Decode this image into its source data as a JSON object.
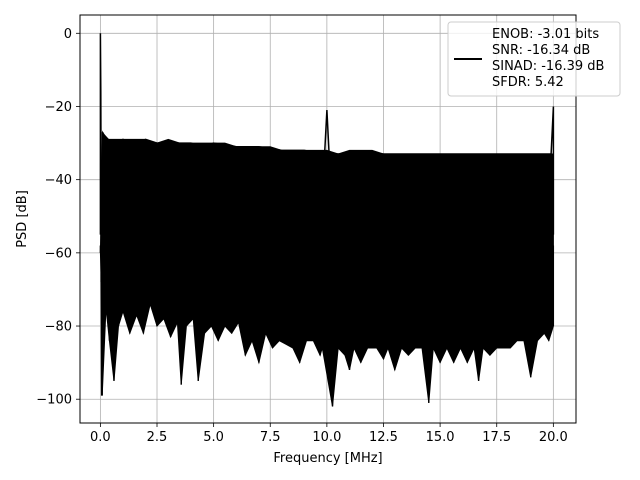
{
  "chart_data": {
    "type": "line",
    "title": "",
    "xlabel": "Frequency [MHz]",
    "ylabel": "PSD [dB]",
    "xlim": [
      -0.9,
      21.0
    ],
    "ylim": [
      -106.5,
      5.0
    ],
    "xticks": [
      0.0,
      2.5,
      5.0,
      7.5,
      10.0,
      12.5,
      15.0,
      17.5,
      20.0
    ],
    "xtick_labels": [
      "0.0",
      "2.5",
      "5.0",
      "7.5",
      "10.0",
      "12.5",
      "15.0",
      "17.5",
      "20.0"
    ],
    "yticks": [
      0,
      -20,
      -40,
      -60,
      -80,
      -100
    ],
    "ytick_labels": [
      "0",
      "−20",
      "−40",
      "−60",
      "−80",
      "−100"
    ],
    "grid": true,
    "legend_position": "top-right",
    "legend_entries": [
      "ENOB: -3.01 bits",
      "SNR: -16.34 dB",
      "SINAD: -16.39 dB",
      "SFDR: 5.42"
    ],
    "series": [
      {
        "color": "#000000",
        "x": [
          0.0,
          0.0,
          0.02,
          0.04,
          0.06,
          0.08,
          0.1,
          0.15,
          0.2,
          0.5,
          1.0,
          1.5,
          2.0,
          2.5,
          3.0,
          3.5,
          4.0,
          4.5,
          5.0,
          6.0,
          7.0,
          8.0,
          9.0,
          9.9,
          10.0,
          10.1,
          11.0,
          12.0,
          13.0,
          14.0,
          15.0,
          16.0,
          17.0,
          18.0,
          19.0,
          19.9,
          20.0,
          20.0
        ],
        "y": [
          -55,
          0,
          -16,
          -60,
          -99,
          -70,
          -27,
          -29,
          -28,
          -30,
          -29,
          -30,
          -29,
          -30,
          -30,
          -30,
          -30,
          -31,
          -30,
          -31,
          -31,
          -32,
          -32,
          -33,
          -21,
          -33,
          -33,
          -33,
          -33,
          -33,
          -33,
          -33,
          -33,
          -33,
          -33,
          -33,
          -20,
          -55
        ],
        "envelope_low": [
          [
            0.0,
            -60
          ],
          [
            0.04,
            -68
          ],
          [
            0.08,
            -99
          ],
          [
            0.25,
            -75
          ],
          [
            0.4,
            -84
          ],
          [
            0.6,
            -95
          ],
          [
            0.8,
            -80
          ],
          [
            1.0,
            -76
          ],
          [
            1.3,
            -82
          ],
          [
            1.6,
            -77
          ],
          [
            1.9,
            -82
          ],
          [
            2.2,
            -74
          ],
          [
            2.5,
            -80
          ],
          [
            2.8,
            -78
          ],
          [
            3.1,
            -83
          ],
          [
            3.4,
            -79
          ],
          [
            3.57,
            -96
          ],
          [
            3.8,
            -80
          ],
          [
            4.1,
            -78
          ],
          [
            4.32,
            -95
          ],
          [
            4.6,
            -82
          ],
          [
            4.9,
            -80
          ],
          [
            5.2,
            -84
          ],
          [
            5.5,
            -80
          ],
          [
            5.8,
            -82
          ],
          [
            6.1,
            -79
          ],
          [
            6.4,
            -88
          ],
          [
            6.7,
            -84
          ],
          [
            7.0,
            -90
          ],
          [
            7.3,
            -82
          ],
          [
            7.6,
            -86
          ],
          [
            7.9,
            -84
          ],
          [
            8.2,
            -85
          ],
          [
            8.5,
            -86
          ],
          [
            8.8,
            -90
          ],
          [
            9.1,
            -84
          ],
          [
            9.4,
            -84
          ],
          [
            9.7,
            -88
          ],
          [
            9.8,
            -86
          ],
          [
            10.25,
            -102
          ],
          [
            10.5,
            -86
          ],
          [
            10.8,
            -88
          ],
          [
            11.0,
            -92
          ],
          [
            11.2,
            -86
          ],
          [
            11.5,
            -90
          ],
          [
            11.8,
            -86
          ],
          [
            12.2,
            -86
          ],
          [
            12.5,
            -89
          ],
          [
            12.7,
            -86
          ],
          [
            13.0,
            -92
          ],
          [
            13.3,
            -86
          ],
          [
            13.6,
            -88
          ],
          [
            13.9,
            -86
          ],
          [
            14.2,
            -86
          ],
          [
            14.5,
            -101
          ],
          [
            14.7,
            -86
          ],
          [
            15.0,
            -90
          ],
          [
            15.3,
            -86
          ],
          [
            15.6,
            -90
          ],
          [
            15.9,
            -86
          ],
          [
            16.2,
            -90
          ],
          [
            16.5,
            -86
          ],
          [
            16.7,
            -95
          ],
          [
            16.9,
            -86
          ],
          [
            17.2,
            -88
          ],
          [
            17.5,
            -86
          ],
          [
            17.8,
            -86
          ],
          [
            18.1,
            -86
          ],
          [
            18.4,
            -84
          ],
          [
            18.7,
            -84
          ],
          [
            19.0,
            -94
          ],
          [
            19.3,
            -84
          ],
          [
            19.6,
            -82
          ],
          [
            19.8,
            -84
          ],
          [
            20.0,
            -80
          ]
        ],
        "envelope_high": [
          [
            0.1,
            -27
          ],
          [
            0.3,
            -29
          ],
          [
            0.6,
            -29
          ],
          [
            1.0,
            -29
          ],
          [
            1.5,
            -29
          ],
          [
            2.0,
            -29
          ],
          [
            2.5,
            -30
          ],
          [
            3.0,
            -29
          ],
          [
            3.5,
            -30
          ],
          [
            4.0,
            -30
          ],
          [
            4.5,
            -30
          ],
          [
            5.0,
            -30
          ],
          [
            5.5,
            -30
          ],
          [
            6.0,
            -31
          ],
          [
            6.5,
            -31
          ],
          [
            7.0,
            -31
          ],
          [
            7.5,
            -31
          ],
          [
            8.0,
            -32
          ],
          [
            8.5,
            -32
          ],
          [
            9.0,
            -32
          ],
          [
            9.5,
            -32
          ],
          [
            10.0,
            -32
          ],
          [
            10.5,
            -33
          ],
          [
            11.0,
            -32
          ],
          [
            11.5,
            -32
          ],
          [
            12.0,
            -32
          ],
          [
            12.5,
            -33
          ],
          [
            13.0,
            -33
          ],
          [
            13.5,
            -33
          ],
          [
            14.0,
            -33
          ],
          [
            14.5,
            -33
          ],
          [
            15.0,
            -33
          ],
          [
            15.5,
            -33
          ],
          [
            16.0,
            -33
          ],
          [
            16.5,
            -33
          ],
          [
            17.0,
            -33
          ],
          [
            17.5,
            -33
          ],
          [
            18.0,
            -33
          ],
          [
            18.5,
            -33
          ],
          [
            19.0,
            -33
          ],
          [
            19.5,
            -33
          ],
          [
            20.0,
            -33
          ]
        ]
      }
    ]
  }
}
